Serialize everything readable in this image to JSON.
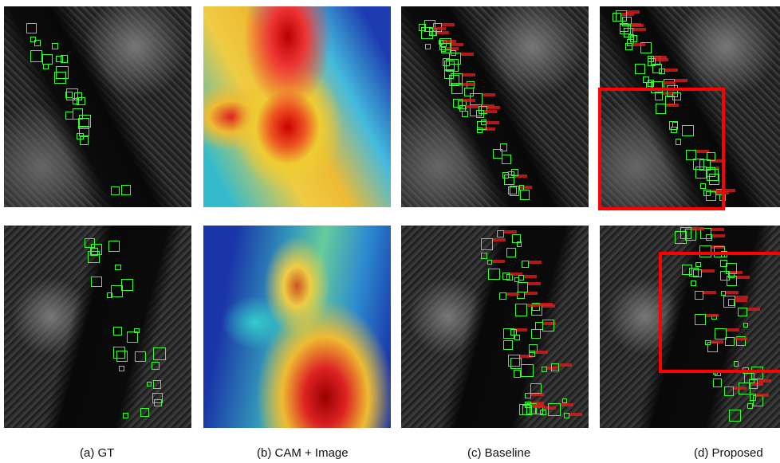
{
  "figure": {
    "captions": [
      "(a) GT",
      "(b) CAM + Image",
      "(c) Baseline",
      "(d) Proposed"
    ]
  }
}
